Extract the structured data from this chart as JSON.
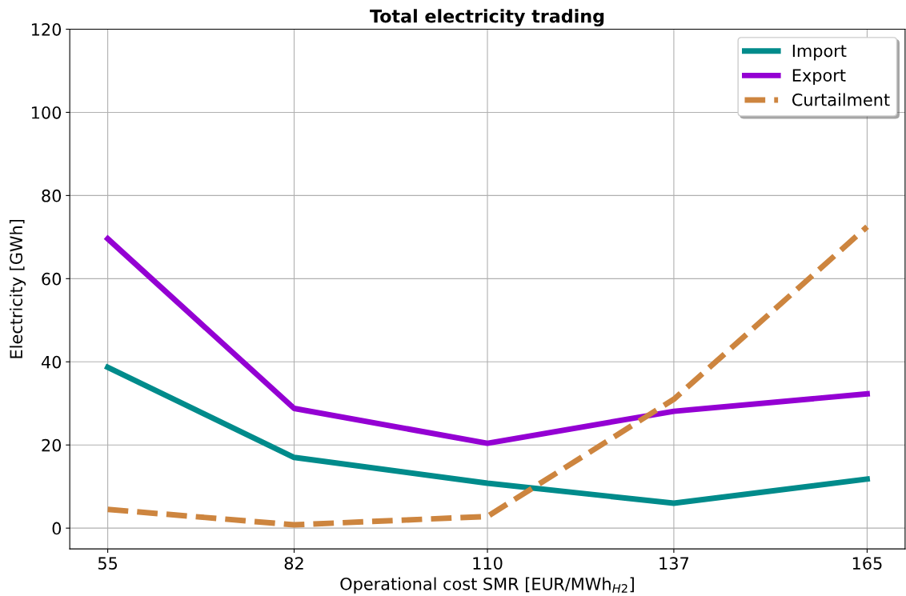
{
  "chart_data": {
    "type": "line",
    "title": "Total electricity trading",
    "xlabel": "Operational cost SMR [EUR/MWh$_{H2}$]",
    "ylabel": "Electricity [GWh]",
    "x": [
      55,
      82,
      110,
      137,
      165
    ],
    "series": [
      {
        "name": "Import",
        "color": "#008b8b",
        "values": [
          38.7,
          17,
          10.8,
          6,
          11.8
        ],
        "line_style": "solid"
      },
      {
        "name": "Export",
        "color": "#9400d3",
        "values": [
          69.6,
          28.8,
          20.4,
          28.1,
          32.3
        ],
        "line_style": "solid"
      },
      {
        "name": "Curtailment",
        "color": "#cd853f",
        "values": [
          4.5,
          0.8,
          2.8,
          31,
          72.5
        ],
        "line_style": "dashed"
      }
    ],
    "xlim": [
      49.5,
      170.5
    ],
    "xticks": [
      55,
      82,
      110,
      137,
      165
    ],
    "ylim": [
      -5,
      120
    ],
    "yticks": [
      0,
      20,
      40,
      60,
      80,
      100,
      120
    ],
    "grid": true,
    "legend": "top right",
    "marker": "none"
  }
}
